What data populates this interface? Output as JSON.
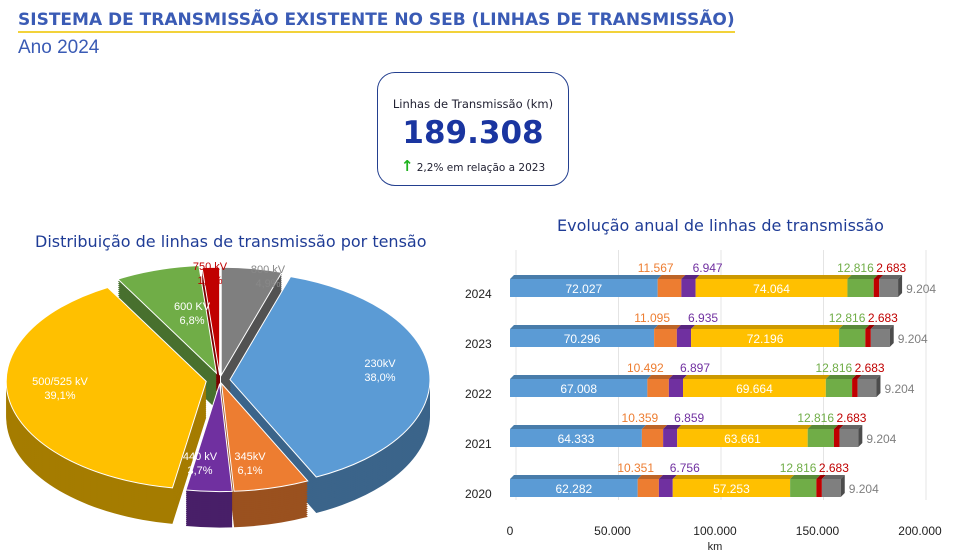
{
  "header": {
    "title": "SISTEMA DE TRANSMISSÃO EXISTENTE NO SEB (LINHAS DE TRANSMISSÃO)",
    "subtitle": "Ano 2024"
  },
  "kpi": {
    "label": "Linhas de Transmissão (km)",
    "value": "189.308",
    "delta": "2,2% em relação a 2023",
    "arrow_icon": "arrow-up-icon",
    "arrow_color": "#1fb31f"
  },
  "chart_data": [
    {
      "type": "pie",
      "title": "Distribuição de linhas de transmissão por tensão",
      "style": "3d-exploded",
      "slices": [
        {
          "label": "800 kV",
          "pct_label": "4,9%",
          "value": 4.9,
          "color": "#7f7f7f"
        },
        {
          "label": "230kV",
          "pct_label": "38,0%",
          "value": 38.0,
          "color": "#5b9bd5"
        },
        {
          "label": "345kV",
          "pct_label": "6,1%",
          "value": 6.1,
          "color": "#ed7d31"
        },
        {
          "label": "440 kV",
          "pct_label": "3,7%",
          "value": 3.7,
          "color": "#7030a0"
        },
        {
          "label": "500/525 kV",
          "pct_label": "39,1%",
          "value": 39.1,
          "color": "#ffc000"
        },
        {
          "label": "600 KV",
          "pct_label": "6,8%",
          "value": 6.8,
          "color": "#70ad47"
        },
        {
          "label": "750 kV",
          "pct_label": "1,4%",
          "value": 1.4,
          "color": "#c00000"
        }
      ]
    },
    {
      "type": "bar",
      "orientation": "horizontal",
      "stacked": true,
      "title": "Evolução anual de linhas de transmissão",
      "xlabel": "km",
      "xlim": [
        0,
        200000
      ],
      "xticks": [
        "0",
        "50.000",
        "100.000",
        "150.000",
        "200.000"
      ],
      "categories": [
        "2024",
        "2023",
        "2022",
        "2021",
        "2020"
      ],
      "series": [
        {
          "color": "#5b9bd5",
          "values": [
            72027,
            70296,
            67008,
            64333,
            62282
          ],
          "labels": [
            "72.027",
            "70.296",
            "67.008",
            "64.333",
            "62.282"
          ]
        },
        {
          "color": "#ed7d31",
          "values": [
            11567,
            11095,
            10492,
            10359,
            10351
          ],
          "labels": [
            "11.567",
            "11.095",
            "10.492",
            "10.359",
            "10.351"
          ]
        },
        {
          "color": "#7030a0",
          "values": [
            6947,
            6935,
            6897,
            6859,
            6756
          ],
          "labels": [
            "6.947",
            "6.935",
            "6.897",
            "6.859",
            "6.756"
          ]
        },
        {
          "color": "#ffc000",
          "values": [
            74064,
            72196,
            69664,
            63661,
            57253
          ],
          "labels": [
            "74.064",
            "72.196",
            "69.664",
            "63.661",
            "57.253"
          ]
        },
        {
          "color": "#70ad47",
          "values": [
            12816,
            12816,
            12816,
            12816,
            12816
          ],
          "labels": [
            "12.816",
            "12.816",
            "12.816",
            "12.816",
            "12.816"
          ]
        },
        {
          "color": "#c00000",
          "values": [
            2683,
            2683,
            2683,
            2683,
            2683
          ],
          "labels": [
            "2.683",
            "2.683",
            "2.683",
            "2.683",
            "2.683"
          ]
        },
        {
          "color": "#7f7f7f",
          "values": [
            9204,
            9204,
            9204,
            9204,
            9204
          ],
          "labels": [
            "9.204",
            "9.204",
            "9.204",
            "9.204",
            "9.204"
          ]
        }
      ]
    }
  ]
}
